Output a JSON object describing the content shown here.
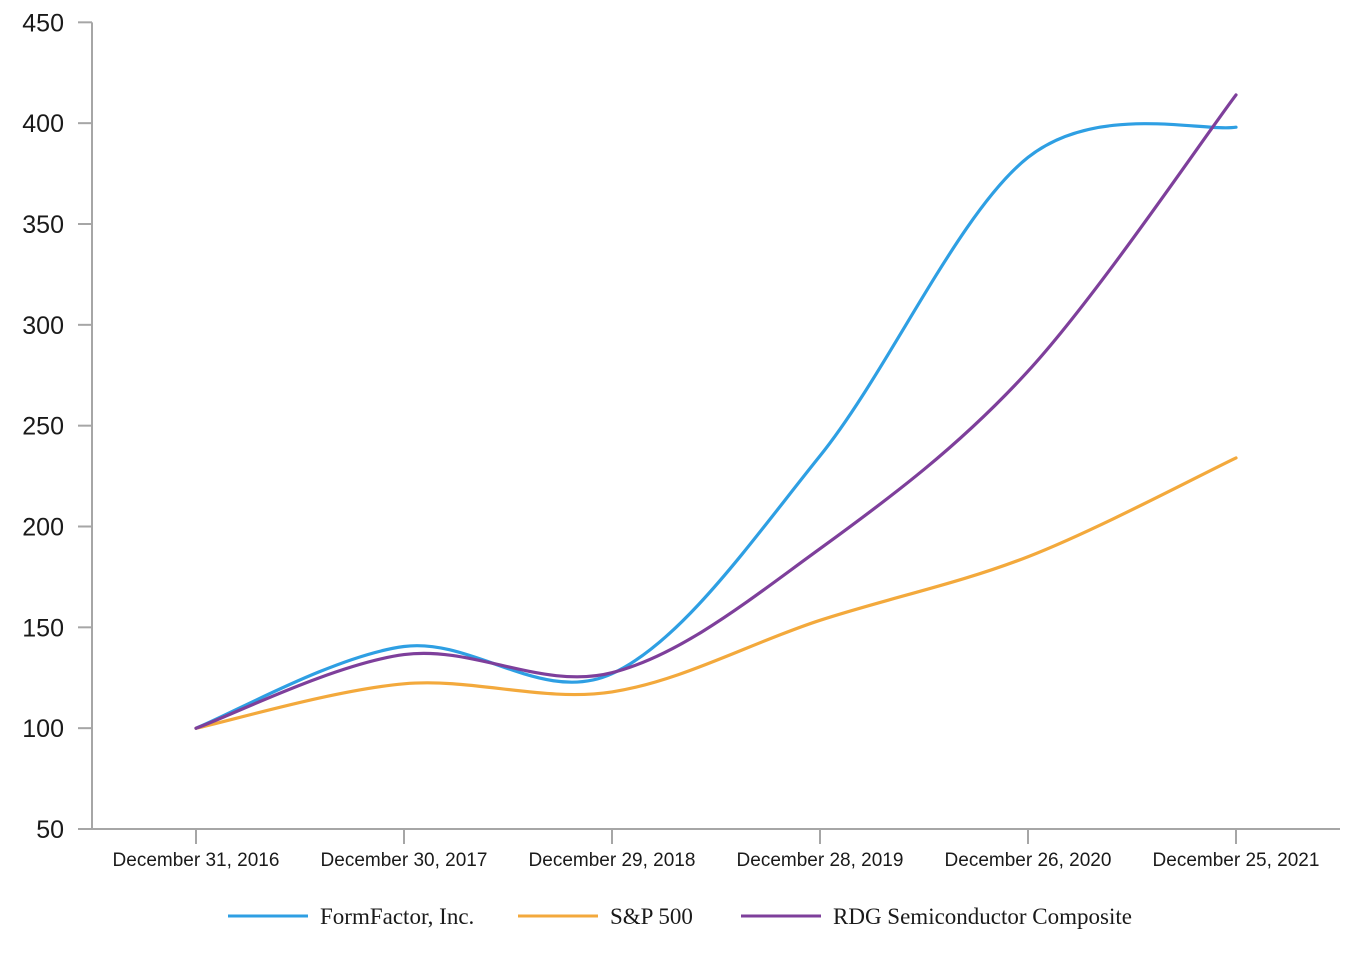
{
  "chart_data": {
    "type": "line",
    "title": "",
    "xlabel": "",
    "ylabel": "",
    "categories": [
      "December 31, 2016",
      "December 30, 2017",
      "December 29, 2018",
      "December 28, 2019",
      "December 26, 2020",
      "December 25, 2021"
    ],
    "series": [
      {
        "name": "FormFactor, Inc.",
        "color": "#2E9FE3",
        "values": [
          100,
          140.5,
          127,
          235,
          383,
          398
        ]
      },
      {
        "name": "S&P 500",
        "color": "#F3A93C",
        "values": [
          100,
          122,
          118,
          153.5,
          185,
          234
        ]
      },
      {
        "name": "RDG Semiconductor Composite",
        "color": "#7E3F9B",
        "values": [
          100,
          136.5,
          127.5,
          189,
          277,
          414
        ]
      }
    ],
    "ylim": [
      50,
      450
    ],
    "ytick_step": 50,
    "yticks": [
      50,
      100,
      150,
      200,
      250,
      300,
      350,
      400,
      450
    ],
    "grid": false,
    "line_style": "smooth",
    "legend_position": "bottom",
    "axis_color": "#A6A6A6",
    "text_color": "#1A1A1A",
    "background_color": "#FFFFFF"
  }
}
